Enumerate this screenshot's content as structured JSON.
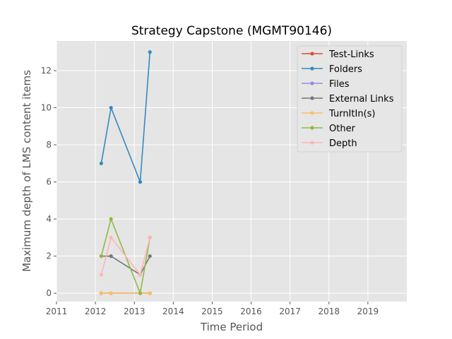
{
  "chart_data": {
    "type": "line",
    "title": "Strategy Capstone (MGMT90146)",
    "xlabel": "Time Period",
    "ylabel": "Maximum depth of LMS content items",
    "xlim": [
      2011,
      2020
    ],
    "ylim": [
      -0.45,
      13.6
    ],
    "xticks": [
      2011,
      2012,
      2013,
      2014,
      2015,
      2016,
      2017,
      2018,
      2019
    ],
    "yticks": [
      0,
      2,
      4,
      6,
      8,
      10,
      12
    ],
    "grid": true,
    "legend_position": "top-right",
    "series": [
      {
        "name": "Test-Links",
        "color": "#e24a33",
        "x": [
          2012.15,
          2012.4,
          2013.15,
          2013.4
        ],
        "y": [
          0,
          0,
          0,
          0
        ]
      },
      {
        "name": "Folders",
        "color": "#348abd",
        "x": [
          2012.15,
          2012.4,
          2013.15,
          2013.4
        ],
        "y": [
          7,
          10,
          6,
          13
        ]
      },
      {
        "name": "Files",
        "color": "#988ed5",
        "x": [
          2012.15,
          2012.4,
          2013.15,
          2013.4
        ],
        "y": [
          0,
          0,
          0,
          0
        ]
      },
      {
        "name": "External Links",
        "color": "#777777",
        "x": [
          2012.15,
          2012.4,
          2013.15,
          2013.4
        ],
        "y": [
          2,
          2,
          1,
          2
        ]
      },
      {
        "name": "TurnItIn(s)",
        "color": "#fbc15e",
        "x": [
          2012.15,
          2012.4,
          2013.15,
          2013.4
        ],
        "y": [
          0,
          0,
          0,
          0
        ]
      },
      {
        "name": "Other",
        "color": "#8eba42",
        "x": [
          2012.15,
          2012.4,
          2013.15,
          2013.4
        ],
        "y": [
          2,
          4,
          0,
          3
        ]
      },
      {
        "name": "Depth",
        "color": "#ffb5b8",
        "x": [
          2012.15,
          2012.4,
          2013.15,
          2013.4
        ],
        "y": [
          1,
          3,
          1,
          3
        ]
      }
    ]
  }
}
